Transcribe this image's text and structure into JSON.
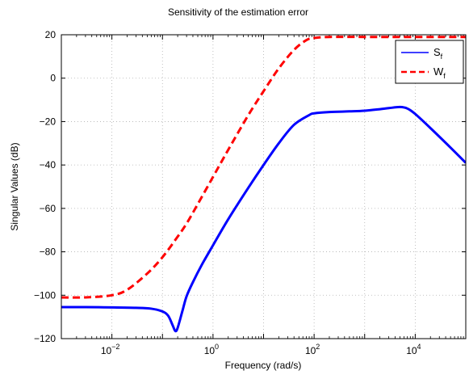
{
  "chart_data": {
    "type": "line",
    "title": "Sensitivity of the estimation error",
    "xlabel": "Frequency (rad/s)",
    "ylabel": "Singular Values (dB)",
    "x_scale": "log",
    "xlim": [
      0.001,
      100000
    ],
    "ylim": [
      -120,
      20
    ],
    "grid": true,
    "legend_position": "top-right",
    "y_ticks": [
      20,
      0,
      -20,
      -40,
      -60,
      -80,
      -100,
      -120
    ],
    "x_ticks": [
      {
        "base": "10",
        "exp": "-2",
        "value": 0.01
      },
      {
        "base": "10",
        "exp": "0",
        "value": 1
      },
      {
        "base": "10",
        "exp": "2",
        "value": 100
      },
      {
        "base": "10",
        "exp": "4",
        "value": 10000
      }
    ],
    "series": [
      {
        "name_main": "S",
        "name_sub": "f",
        "color": "#0000ff",
        "style": "solid",
        "x": [
          0.001,
          0.003,
          0.01,
          0.03,
          0.06,
          0.1,
          0.13,
          0.16,
          0.18,
          0.2,
          0.25,
          0.3,
          0.4,
          0.6,
          1,
          2,
          5,
          10,
          20,
          40,
          80,
          100,
          200,
          500,
          1000,
          2000,
          3000,
          5000,
          7000,
          10000,
          20000,
          50000,
          100000
        ],
        "y": [
          -105.5,
          -105.5,
          -105.6,
          -105.8,
          -106.2,
          -107.5,
          -109.5,
          -114,
          -116.5,
          -115,
          -107,
          -100.5,
          -94,
          -86,
          -77,
          -65,
          -50.5,
          -40,
          -30,
          -21.5,
          -17,
          -16.2,
          -15.6,
          -15.3,
          -15,
          -14.3,
          -13.8,
          -13.3,
          -14,
          -16.5,
          -23,
          -32,
          -39
        ]
      },
      {
        "name_main": "W",
        "name_sub": "f",
        "color": "#ff0000",
        "style": "dashed",
        "x": [
          0.001,
          0.003,
          0.01,
          0.02,
          0.05,
          0.1,
          0.2,
          0.3,
          0.5,
          1,
          2,
          5,
          10,
          20,
          40,
          70,
          100,
          200,
          1000,
          10000,
          100000
        ],
        "y": [
          -101,
          -101,
          -100,
          -97.5,
          -90,
          -82.5,
          -73,
          -67,
          -58,
          -45.5,
          -33,
          -17,
          -6,
          4.5,
          13,
          17.5,
          18.5,
          19,
          19,
          19,
          19
        ]
      }
    ]
  }
}
